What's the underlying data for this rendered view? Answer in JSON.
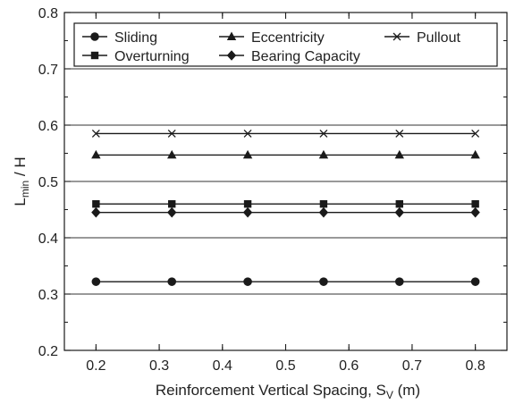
{
  "chart_data": {
    "type": "line",
    "title": "",
    "xlabel": "Reinforcement Vertical Spacing, S",
    "xlabel_sub": "V",
    "xlabel_suffix": " (m)",
    "ylabel": "L",
    "ylabel_sub": "min",
    "ylabel_suffix": " / H",
    "xlim": [
      0.15,
      0.85
    ],
    "ylim": [
      0.2,
      0.8
    ],
    "xticks": [
      0.2,
      0.3,
      0.4,
      0.5,
      0.6,
      0.7,
      0.8
    ],
    "xtick_labels": [
      "0.2",
      "0.3",
      "0.4",
      "0.5",
      "0.6",
      "0.7",
      "0.8"
    ],
    "yticks": [
      0.2,
      0.3,
      0.4,
      0.5,
      0.6,
      0.7,
      0.8
    ],
    "ytick_labels": [
      "0.2",
      "0.3",
      "0.4",
      "0.5",
      "0.6",
      "0.7",
      "0.8"
    ],
    "grid": "horizontal",
    "legend_position": "top",
    "x": [
      0.2,
      0.32,
      0.44,
      0.56,
      0.68,
      0.8
    ],
    "series": [
      {
        "name": "Sliding",
        "marker": "circle",
        "values": [
          0.322,
          0.322,
          0.322,
          0.322,
          0.322,
          0.322
        ]
      },
      {
        "name": "Overturning",
        "marker": "square",
        "values": [
          0.46,
          0.46,
          0.46,
          0.46,
          0.46,
          0.46
        ]
      },
      {
        "name": "Eccentricity",
        "marker": "triangle",
        "values": [
          0.547,
          0.547,
          0.547,
          0.547,
          0.547,
          0.547
        ]
      },
      {
        "name": "Bearing Capacity",
        "marker": "diamond",
        "values": [
          0.445,
          0.445,
          0.445,
          0.445,
          0.445,
          0.445
        ]
      },
      {
        "name": "Pullout",
        "marker": "x",
        "values": [
          0.585,
          0.585,
          0.585,
          0.585,
          0.585,
          0.585
        ]
      }
    ],
    "colors": {
      "line": "#1a1a1a",
      "grid": "#333333",
      "axis": "#1a1a1a"
    }
  }
}
